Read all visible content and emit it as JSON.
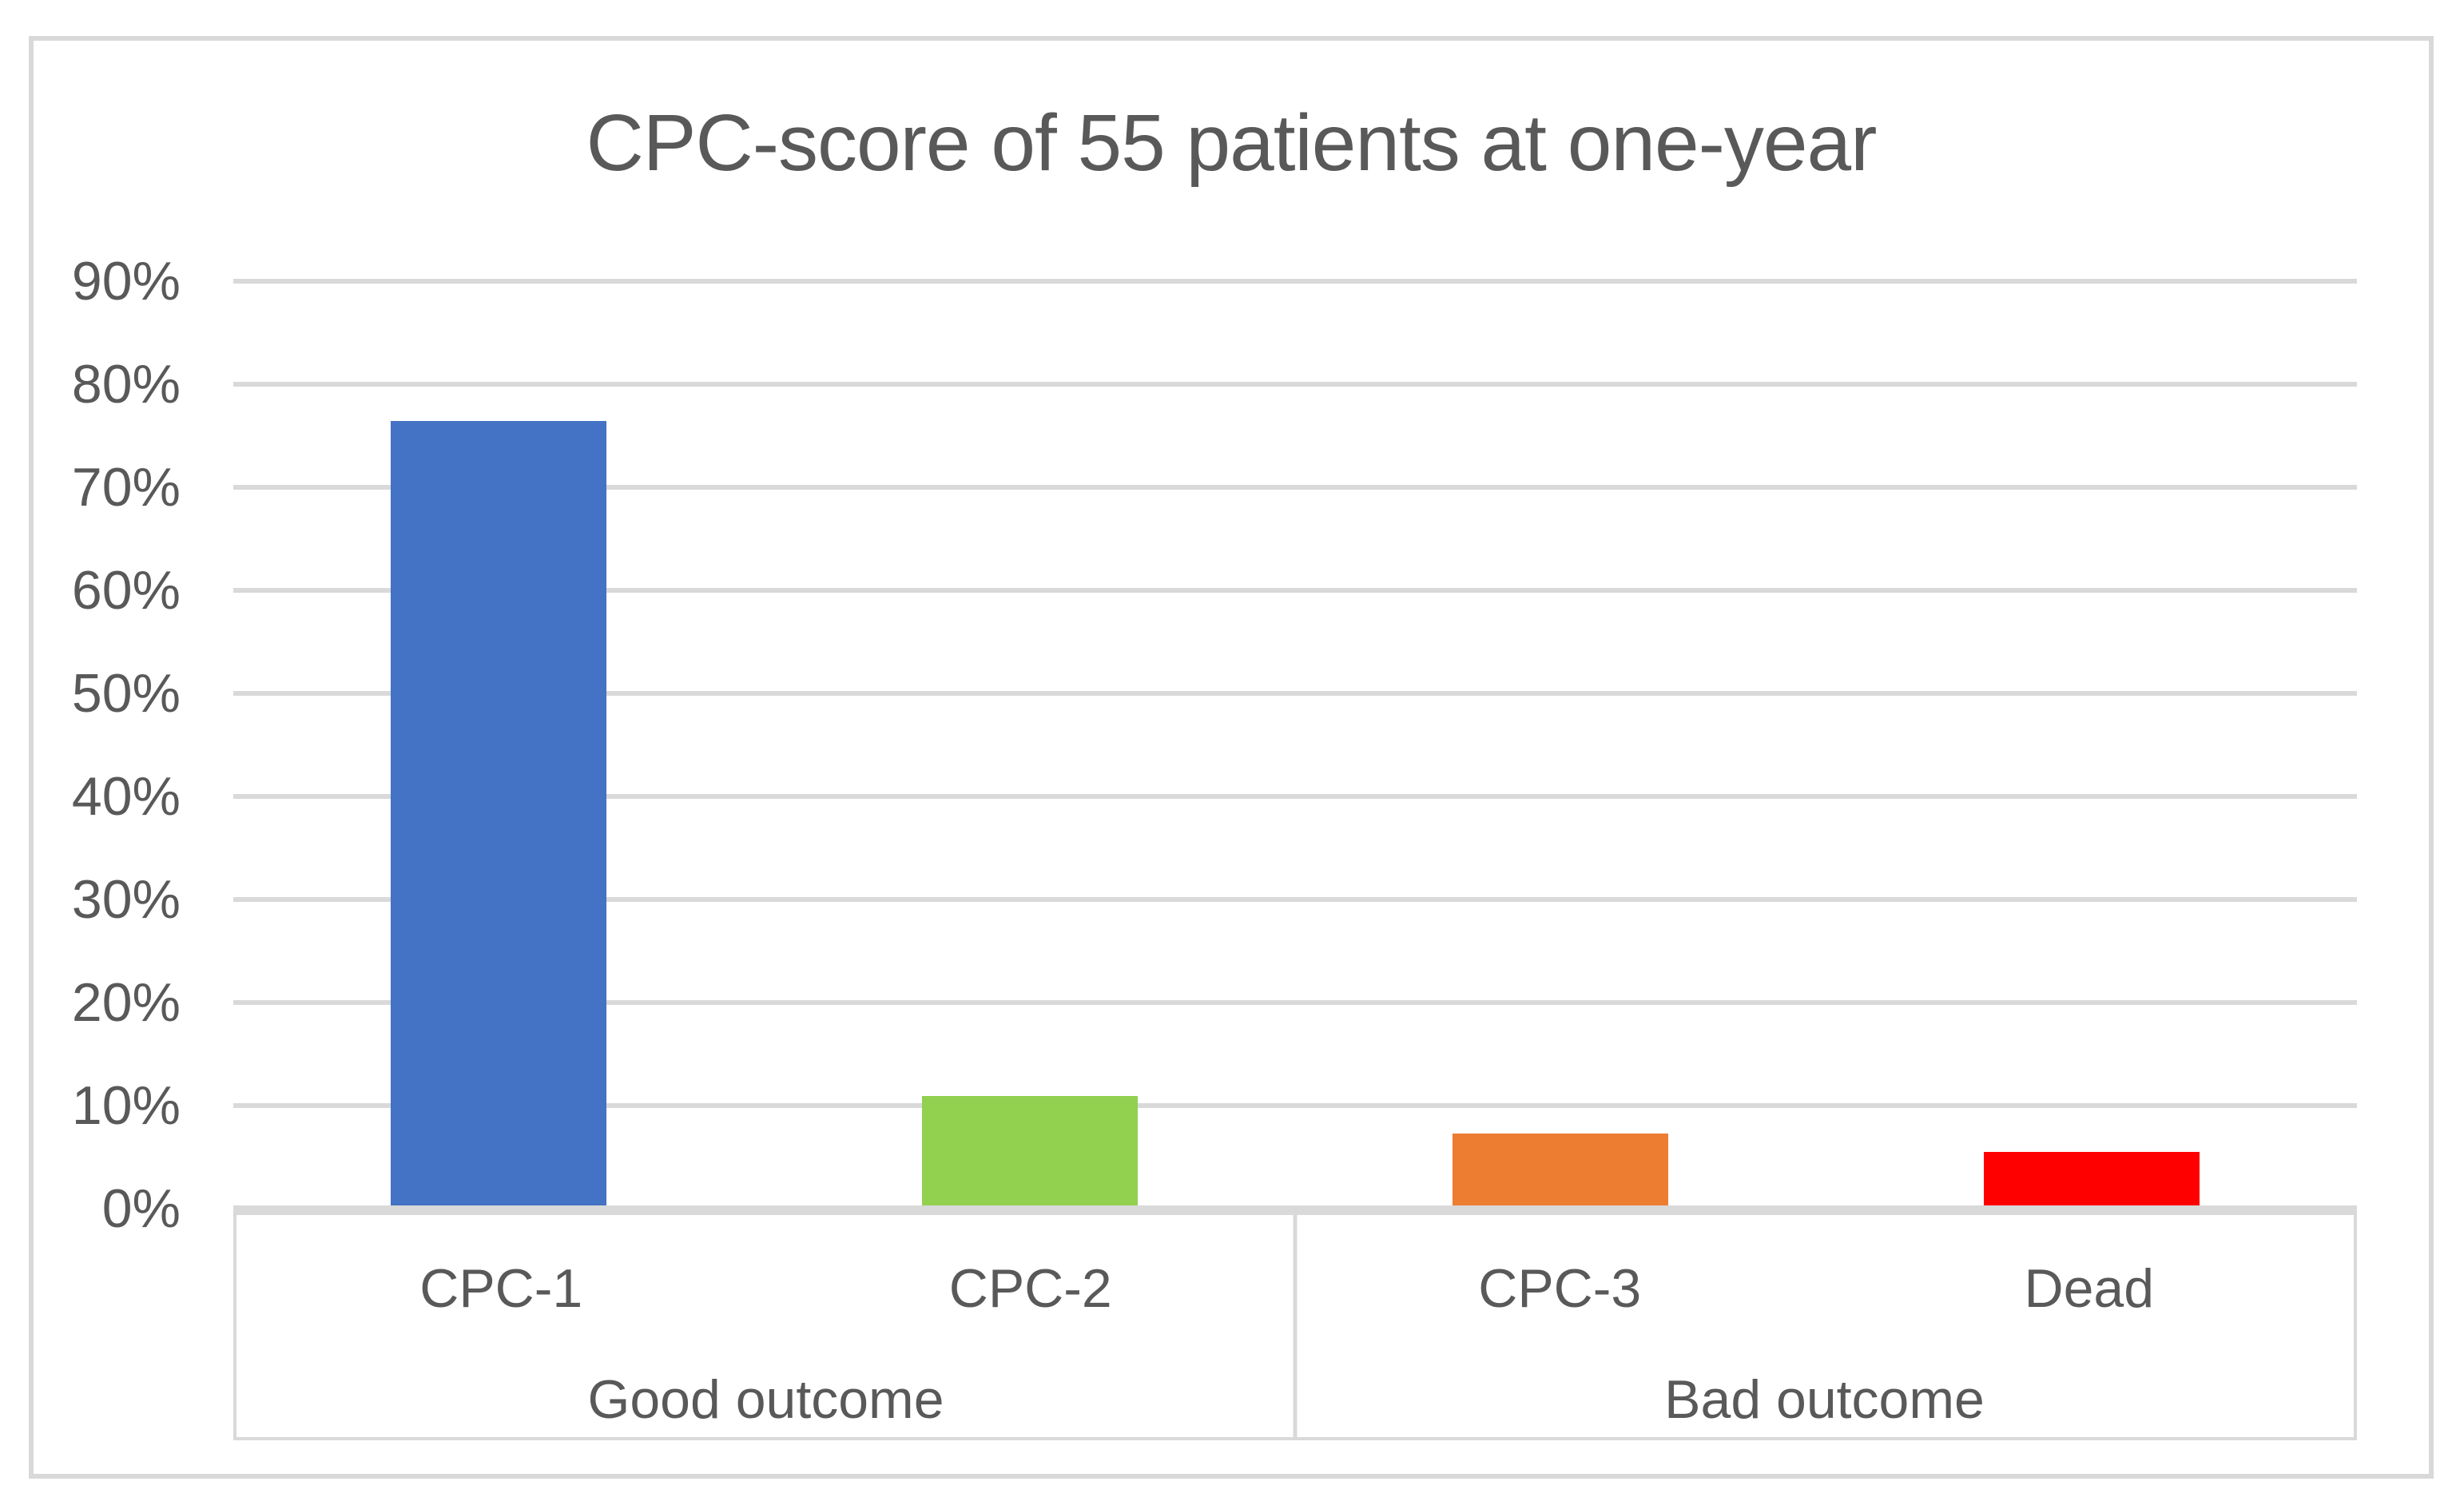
{
  "chart_data": {
    "type": "bar",
    "title": "CPC-score of 55 patients at one-year",
    "categories": [
      "CPC-1",
      "CPC-2",
      "CPC-3",
      "Dead"
    ],
    "values": [
      76.4,
      10.9,
      7.3,
      5.5
    ],
    "value_unit": "%",
    "bar_colors": [
      "#4472C4",
      "#92D050",
      "#ED7D31",
      "#FF0000"
    ],
    "groups": [
      {
        "label": "Good outcome",
        "categories": [
          "CPC-1",
          "CPC-2"
        ]
      },
      {
        "label": "Bad outcome",
        "categories": [
          "CPC-3",
          "Dead"
        ]
      }
    ],
    "y_axis": {
      "min": 0,
      "max": 90,
      "step": 10,
      "tick_labels": [
        "0%",
        "10%",
        "20%",
        "30%",
        "40%",
        "50%",
        "60%",
        "70%",
        "80%",
        "90%"
      ]
    },
    "grid": true,
    "legend": false,
    "xlabel": "",
    "ylabel": "",
    "colors": {
      "gridline": "#D9D9D9",
      "axis_line": "#D9D9D9",
      "frame_border": "#D9D9D9",
      "text": "#595959",
      "background": "#FFFFFF"
    }
  }
}
